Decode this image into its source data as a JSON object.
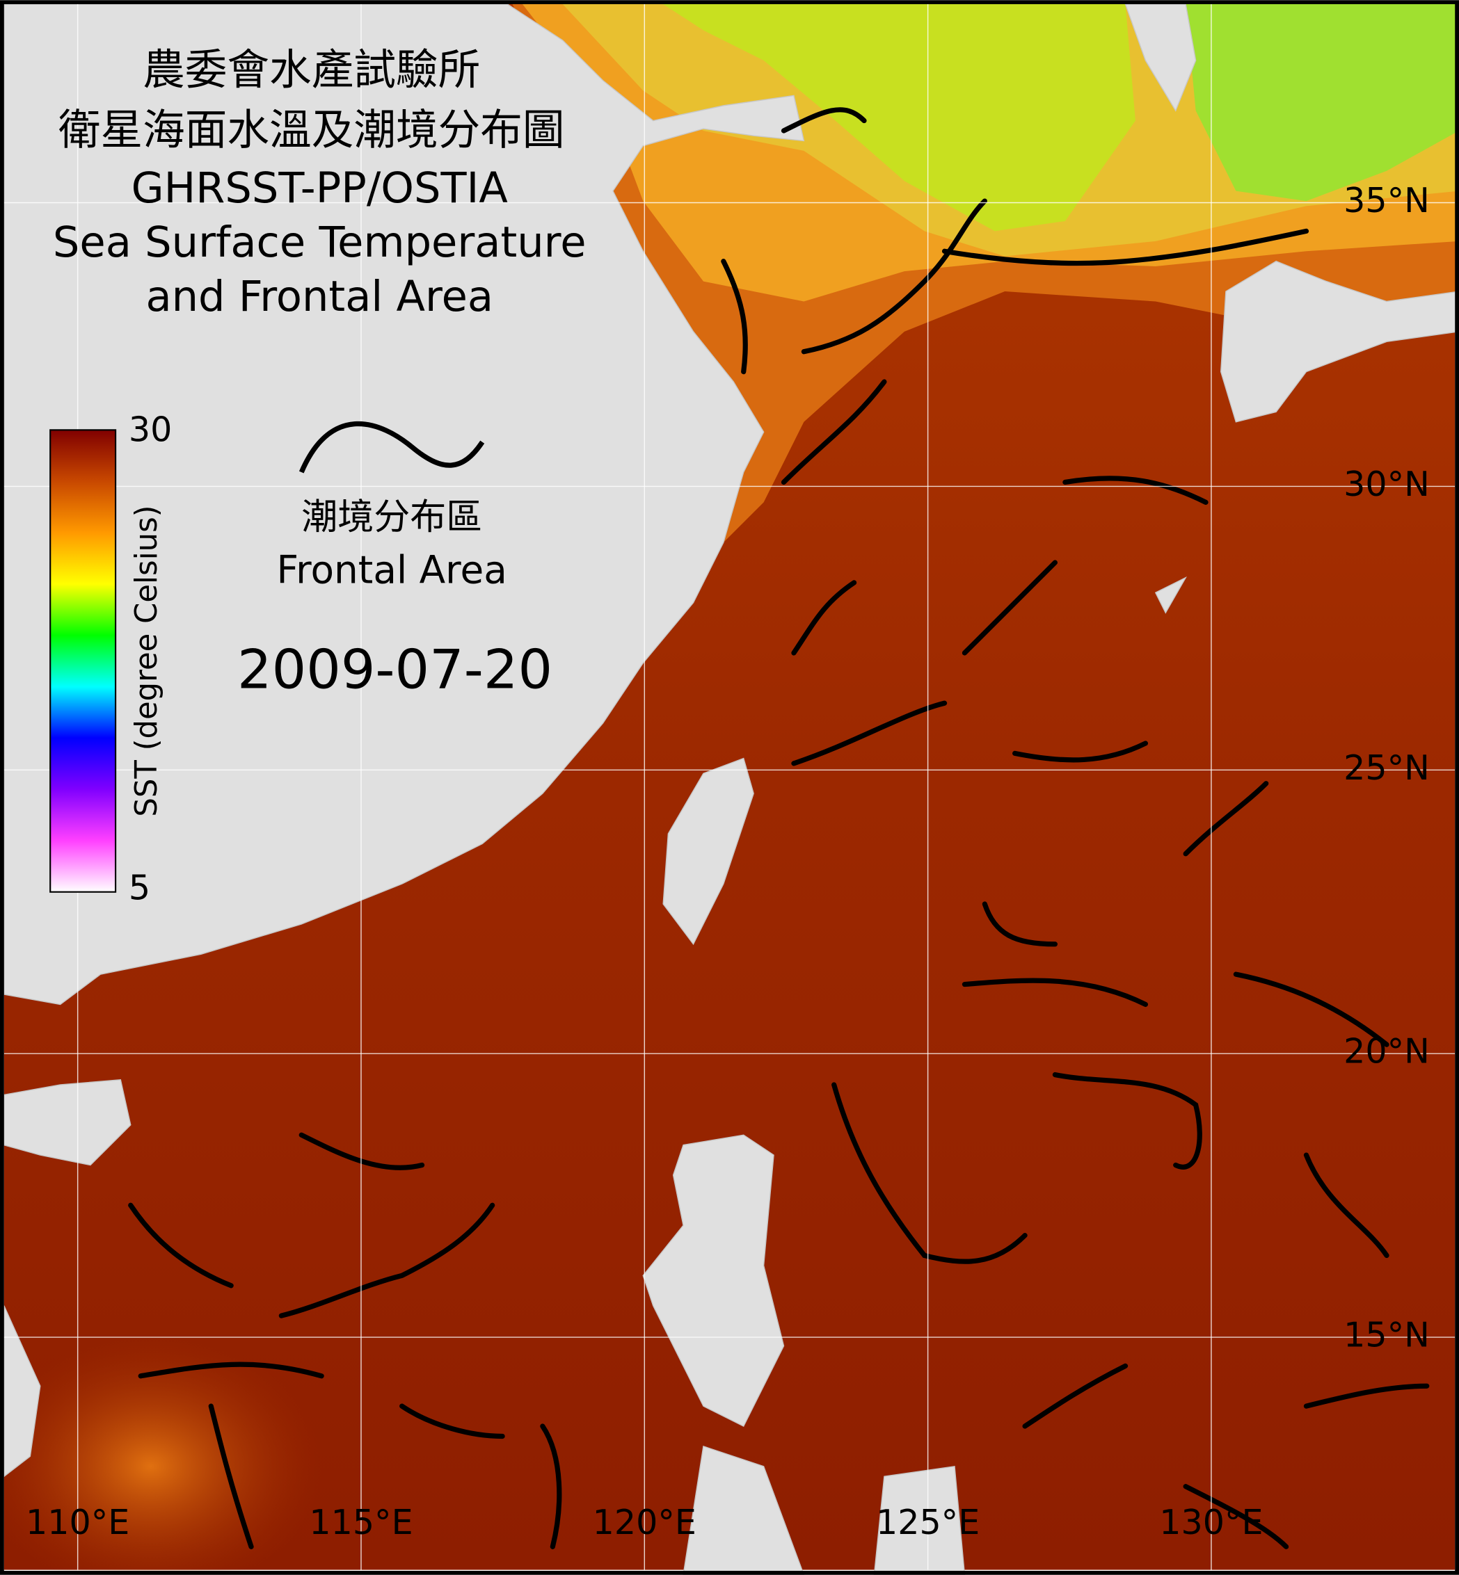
{
  "title": {
    "zh_lines": [
      "農委會水產試驗所",
      "衛星海面水溫及潮境分布圖"
    ],
    "en_lines": [
      "GHRSST-PP/OSTIA",
      "Sea Surface Temperature",
      "and Frontal Area"
    ]
  },
  "legend": {
    "zh": "潮境分布區",
    "en": "Frontal Area"
  },
  "date": "2009-07-20",
  "colorbar": {
    "label": "SST (degree Celsius)",
    "lim": [
      5,
      30
    ],
    "ticks": [
      5,
      30
    ],
    "colors": [
      "#ffffff",
      "#ff40ff",
      "#8000ff",
      "#0000ff",
      "#00ffff",
      "#00ff00",
      "#ffff00",
      "#ff9900",
      "#c84800",
      "#800000"
    ]
  },
  "map": {
    "lonlim": [
      108.7,
      134.3
    ],
    "latlim": [
      10.9,
      38.5
    ],
    "lon_ticks": [
      {
        "value": 110,
        "label": "110°E"
      },
      {
        "value": 115,
        "label": "115°E"
      },
      {
        "value": 120,
        "label": "120°E"
      },
      {
        "value": 125,
        "label": "125°E"
      },
      {
        "value": 130,
        "label": "130°E"
      }
    ],
    "lat_ticks": [
      {
        "value": 35,
        "label": "35°N"
      },
      {
        "value": 30,
        "label": "30°N"
      },
      {
        "value": 25,
        "label": "25°N"
      },
      {
        "value": 20,
        "label": "20°N"
      },
      {
        "value": 15,
        "label": "15°N"
      }
    ]
  }
}
